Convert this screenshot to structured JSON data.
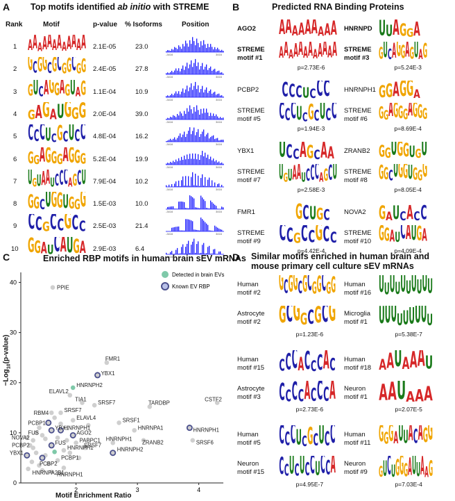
{
  "panelA": {
    "label": "A",
    "title_pre": "Top motifs identified ",
    "title_em": "ab initio",
    "title_post": " with STREME",
    "headers": {
      "rank": "Rank",
      "motif": "Motif",
      "pvalue": "p-value",
      "isoforms": "% Isoforms",
      "position": "Position"
    },
    "rows": [
      {
        "rank": "1",
        "pvalue": "2.1E-05",
        "isoforms": "23.0",
        "seq": "AAAAAAAAAAAA"
      },
      {
        "rank": "2",
        "pvalue": "2.4E-05",
        "isoforms": "27.8",
        "seq": "GCGGCGCGGCGG"
      },
      {
        "rank": "3",
        "pvalue": "1.1E-04",
        "isoforms": "10.9",
        "seq": "GUCAGGAGUAG"
      },
      {
        "rank": "4",
        "pvalue": "2.0E-04",
        "isoforms": "39.0",
        "seq": "GAGAUGGG"
      },
      {
        "rank": "5",
        "pvalue": "4.8E-04",
        "isoforms": "16.2",
        "seq": "CCCUCGCUCC"
      },
      {
        "rank": "6",
        "pvalue": "5.2E-04",
        "isoforms": "19.9",
        "seq": "GGAGGGAGGG"
      },
      {
        "rank": "7",
        "pvalue": "7.9E-04",
        "isoforms": "10.2",
        "seq": "UGUAAUCCCAGCU"
      },
      {
        "rank": "8",
        "pvalue": "1.5E-03",
        "isoforms": "10.0",
        "seq": "GGCUGGUGGG"
      },
      {
        "rank": "9",
        "pvalue": "2.5E-03",
        "isoforms": "21.4",
        "seq": "CCGCCGCC"
      },
      {
        "rank": "10",
        "pvalue": "2.9E-03",
        "isoforms": "6.4",
        "seq": "GGAUCAUGA"
      }
    ],
    "hist_label": "3416"
  },
  "panelB": {
    "label": "B",
    "title": "Predicted RNA Binding Proteins",
    "pairs": [
      {
        "rbp": "AGO2",
        "rbp_bold": true,
        "rbp_seq": "AAAAAAAAA",
        "motif": "STREME motif #1",
        "motif_bold": true,
        "motif_seq": "AAAAAAAAAAAA",
        "p": "p=2.73E-6"
      },
      {
        "rbp": "HNRNPD",
        "rbp_bold": true,
        "rbp_seq": "UUAGGA",
        "motif": "STREME motif #3",
        "motif_bold": true,
        "motif_seq": "GUCAGGAGUAG",
        "p": "p=5.24E-3"
      },
      {
        "rbp": "PCBP2",
        "rbp_bold": false,
        "rbp_seq": "CCCUCCC",
        "motif": "STREME motif #5",
        "motif_bold": false,
        "motif_seq": "CCCUCGCUCC",
        "p": "p=1.94E-3"
      },
      {
        "rbp": "HNRNPH1",
        "rbp_bold": false,
        "rbp_seq": "GGAGGA",
        "motif": "STREME motif #6",
        "motif_bold": false,
        "motif_seq": "GGAGGGAGGG",
        "p": "p=8.69E-4"
      },
      {
        "rbp": "YBX1",
        "rbp_bold": false,
        "rbp_seq": "UCCAGCAA",
        "motif": "STREME motif #7",
        "motif_bold": false,
        "motif_seq": "UGUAAUCCCAGCU",
        "p": "p=2.58E-3"
      },
      {
        "rbp": "ZRANB2",
        "rbp_bold": false,
        "rbp_seq": "GGUGGUGU",
        "motif": "STREME motif #8",
        "motif_bold": false,
        "motif_seq": "GGCUGGUGGG",
        "p": "p=8.05E-4"
      },
      {
        "rbp": "FMR1",
        "rbp_bold": false,
        "rbp_seq": "GCUGC",
        "motif": "STREME motif #9",
        "motif_bold": false,
        "motif_seq": "CCGCCGCC",
        "p": "p=4.42E-4"
      },
      {
        "rbp": "NOVA2",
        "rbp_bold": false,
        "rbp_seq": "GAUCACC",
        "motif": "STREME motif #10",
        "motif_bold": false,
        "motif_seq": "GGAUCAUGA",
        "p": "p=4.09E-4"
      }
    ]
  },
  "panelD": {
    "label": "D",
    "title_line1": "Similar motifs enriched in human brain and",
    "title_line2": "mouse primary cell culture sEV mRNAs",
    "pairs": [
      {
        "top": "Human motif #2",
        "top_seq": "GCGGCGCGGCGG",
        "bottom": "Astrocyte motif #2",
        "bottom_seq": "GCGGCGCG",
        "p": "p=1.23E-6"
      },
      {
        "top": "Human motif #16",
        "top_seq": "UUUUUUUUUU",
        "bottom": "Microglia motif #1",
        "bottom_seq": "UUUUUUUUU",
        "p": "p=5.38E-7"
      },
      {
        "top": "Human motif #15",
        "top_seq": "CCCACCCAC",
        "bottom": "Astrocyte motif #3",
        "bottom_seq": "CCCCACCCA",
        "p": "p=2.73E-6"
      },
      {
        "top": "Human motif #18",
        "top_seq": "AAUAAAU",
        "bottom": "Neuron motif #1",
        "bottom_seq": "AAUAAA",
        "p": "p=2.07E-5"
      },
      {
        "top": "Human motif #5",
        "top_seq": "CCCUCGCUCC",
        "bottom": "Neuron motif #15",
        "bottom_seq": "CCUCUCCUCCA",
        "p": "p=4.95E-7"
      },
      {
        "top": "Human motif #11",
        "top_seq": "GGGAUUACAGG",
        "bottom": "Neuron motif #9",
        "bottom_seq": "GUCUGGGAUUAAG",
        "p": "p=7.03E-4"
      }
    ]
  },
  "panelC": {
    "label": "C",
    "legend": {
      "detected": "Detected in brain EVs",
      "known": "Known EV RBP"
    },
    "colors": {
      "grey": "#cfcfcf",
      "detected": "#7fc9a9",
      "known_edge": "#4a4f8c"
    },
    "chart_data": {
      "type": "scatter",
      "title": "Enriched RBP motifs in human brain sEV mRNAs",
      "xlabel": "Motif Enrichment Ratio",
      "ylabel": "−Log10(p-value)",
      "ylabel_parts": {
        "prefix": "−Log",
        "sub": "10",
        "suffix": "(p-value)"
      },
      "xlim": [
        1.1,
        4.4
      ],
      "ylim": [
        0,
        42
      ],
      "xticks": [
        2,
        3,
        4
      ],
      "yticks": [
        0,
        10,
        20,
        30,
        40
      ],
      "points": [
        {
          "label": "PPIE",
          "x": 1.62,
          "y": 39,
          "cat": "grey"
        },
        {
          "label": "FMR1",
          "x": 2.5,
          "y": 24,
          "cat": "grey"
        },
        {
          "label": "YBX1",
          "x": 2.35,
          "y": 21.5,
          "cat": "known"
        },
        {
          "label": "HNRNPH2",
          "x": 1.95,
          "y": 19,
          "cat": "detected"
        },
        {
          "label": "ELAVL2",
          "x": 1.9,
          "y": 17.5,
          "cat": "grey"
        },
        {
          "label": "TIA1",
          "x": 2.1,
          "y": 16,
          "cat": "grey"
        },
        {
          "label": "SRSF7",
          "x": 2.3,
          "y": 15.5,
          "cat": "grey"
        },
        {
          "label": "RBM4",
          "x": 1.6,
          "y": 14,
          "cat": "grey"
        },
        {
          "label": "SRSF7",
          "x": 1.75,
          "y": 14,
          "cat": "grey"
        },
        {
          "label": "TARDBP",
          "x": 3.2,
          "y": 15.2,
          "cat": "grey"
        },
        {
          "label": "CSTF2",
          "x": 4.3,
          "y": 16,
          "cat": "grey"
        },
        {
          "label": "ELAVL4",
          "x": 1.95,
          "y": 12.5,
          "cat": "grey"
        },
        {
          "label": "PCBP1",
          "x": 1.55,
          "y": 12,
          "cat": "known"
        },
        {
          "label": "YBX1",
          "x": 1.6,
          "y": 10.5,
          "cat": "known"
        },
        {
          "label": "HNRNPH1",
          "x": 1.75,
          "y": 10.5,
          "cat": "known"
        },
        {
          "label": "FUS",
          "x": 1.45,
          "y": 9.5,
          "cat": "grey"
        },
        {
          "label": "AGO2",
          "x": 1.95,
          "y": 9.5,
          "cat": "known"
        },
        {
          "label": "SRSF1",
          "x": 2.7,
          "y": 12,
          "cat": "grey"
        },
        {
          "label": "HNRNPA1",
          "x": 2.95,
          "y": 10.5,
          "cat": "grey"
        },
        {
          "label": "HNRNPH1",
          "x": 3.85,
          "y": 11,
          "cat": "known"
        },
        {
          "label": "NOVA2",
          "x": 1.3,
          "y": 8.5,
          "cat": "grey"
        },
        {
          "label": "PABPC1",
          "x": 2.0,
          "y": 8.0,
          "cat": "grey"
        },
        {
          "label": "FUS",
          "x": 1.6,
          "y": 7.5,
          "cat": "known"
        },
        {
          "label": "PCBP2",
          "x": 1.3,
          "y": 7.0,
          "cat": "grey"
        },
        {
          "label": "HNRNPH1",
          "x": 1.8,
          "y": 6.5,
          "cat": "grey"
        },
        {
          "label": "SRSF7",
          "x": 2.15,
          "y": 7.0,
          "cat": "grey"
        },
        {
          "label": "ZRANB2",
          "x": 3.1,
          "y": 8.5,
          "cat": "grey"
        },
        {
          "label": "SRSF6",
          "x": 3.9,
          "y": 8.5,
          "cat": "grey"
        },
        {
          "label": "HNRNPH1",
          "x": 2.6,
          "y": 8.0,
          "cat": "grey"
        },
        {
          "label": "YBX1",
          "x": 1.2,
          "y": 5.5,
          "cat": "known"
        },
        {
          "label": "PCBP2",
          "x": 1.45,
          "y": 5.0,
          "cat": "known"
        },
        {
          "label": "PCBP1",
          "x": 1.7,
          "y": 4.5,
          "cat": "grey"
        },
        {
          "label": "HNRNPH2",
          "x": 2.6,
          "y": 6.0,
          "cat": "known"
        },
        {
          "label": "HNRNPH1",
          "x": 1.8,
          "y": 3.0,
          "cat": "grey"
        },
        {
          "label": "HNRNPA2B1",
          "x": 1.4,
          "y": 3.5,
          "cat": "grey"
        }
      ],
      "extra_points": [
        {
          "x": 1.25,
          "y": 7.5,
          "cat": "grey"
        },
        {
          "x": 1.35,
          "y": 6.0,
          "cat": "grey"
        },
        {
          "x": 1.5,
          "y": 5.5,
          "cat": "grey"
        },
        {
          "x": 1.28,
          "y": 4.2,
          "cat": "grey"
        },
        {
          "x": 1.55,
          "y": 3.8,
          "cat": "grey"
        },
        {
          "x": 1.65,
          "y": 6.2,
          "cat": "detected"
        },
        {
          "x": 1.5,
          "y": 8.8,
          "cat": "grey"
        },
        {
          "x": 1.7,
          "y": 9.0,
          "cat": "grey"
        },
        {
          "x": 1.85,
          "y": 8.5,
          "cat": "grey"
        },
        {
          "x": 1.4,
          "y": 11.0,
          "cat": "grey"
        },
        {
          "x": 1.65,
          "y": 13.0,
          "cat": "grey"
        },
        {
          "x": 1.2,
          "y": 9.0,
          "cat": "grey"
        },
        {
          "x": 1.35,
          "y": 10.0,
          "cat": "grey"
        },
        {
          "x": 1.9,
          "y": 6.0,
          "cat": "grey"
        },
        {
          "x": 2.05,
          "y": 5.0,
          "cat": "grey"
        },
        {
          "x": 2.2,
          "y": 11.5,
          "cat": "grey"
        },
        {
          "x": 1.45,
          "y": 2.5,
          "cat": "grey"
        },
        {
          "x": 1.22,
          "y": 2.8,
          "cat": "grey"
        },
        {
          "x": 1.75,
          "y": 11.8,
          "cat": "grey"
        },
        {
          "x": 1.6,
          "y": 2.2,
          "cat": "grey"
        }
      ]
    }
  }
}
